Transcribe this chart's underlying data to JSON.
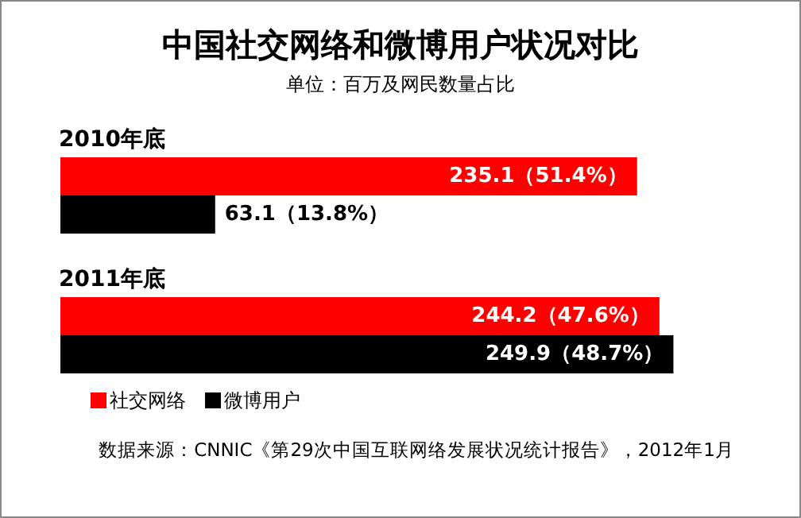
{
  "chart_data": {
    "type": "bar",
    "orientation": "horizontal",
    "title": "中国社交网络和微博用户状况对比",
    "subtitle": "单位：百万及网民数量占比",
    "categories": [
      "2010年底",
      "2011年底"
    ],
    "series": [
      {
        "name": "社交网络",
        "color": "#ff0000",
        "values": [
          235.1,
          244.2
        ],
        "value_labels": [
          "235.1（51.4%）",
          "244.2（47.6%）"
        ]
      },
      {
        "name": "微博用户",
        "color": "#000000",
        "values": [
          63.1,
          249.9
        ],
        "value_labels": [
          "63.1（13.8%）",
          "249.9（48.7%）"
        ]
      }
    ],
    "legend": "bottom",
    "annotations": [
      "数据来源：CNNIC《第29次中国互联网络发展状况统计报告》，2012年1月"
    ]
  }
}
